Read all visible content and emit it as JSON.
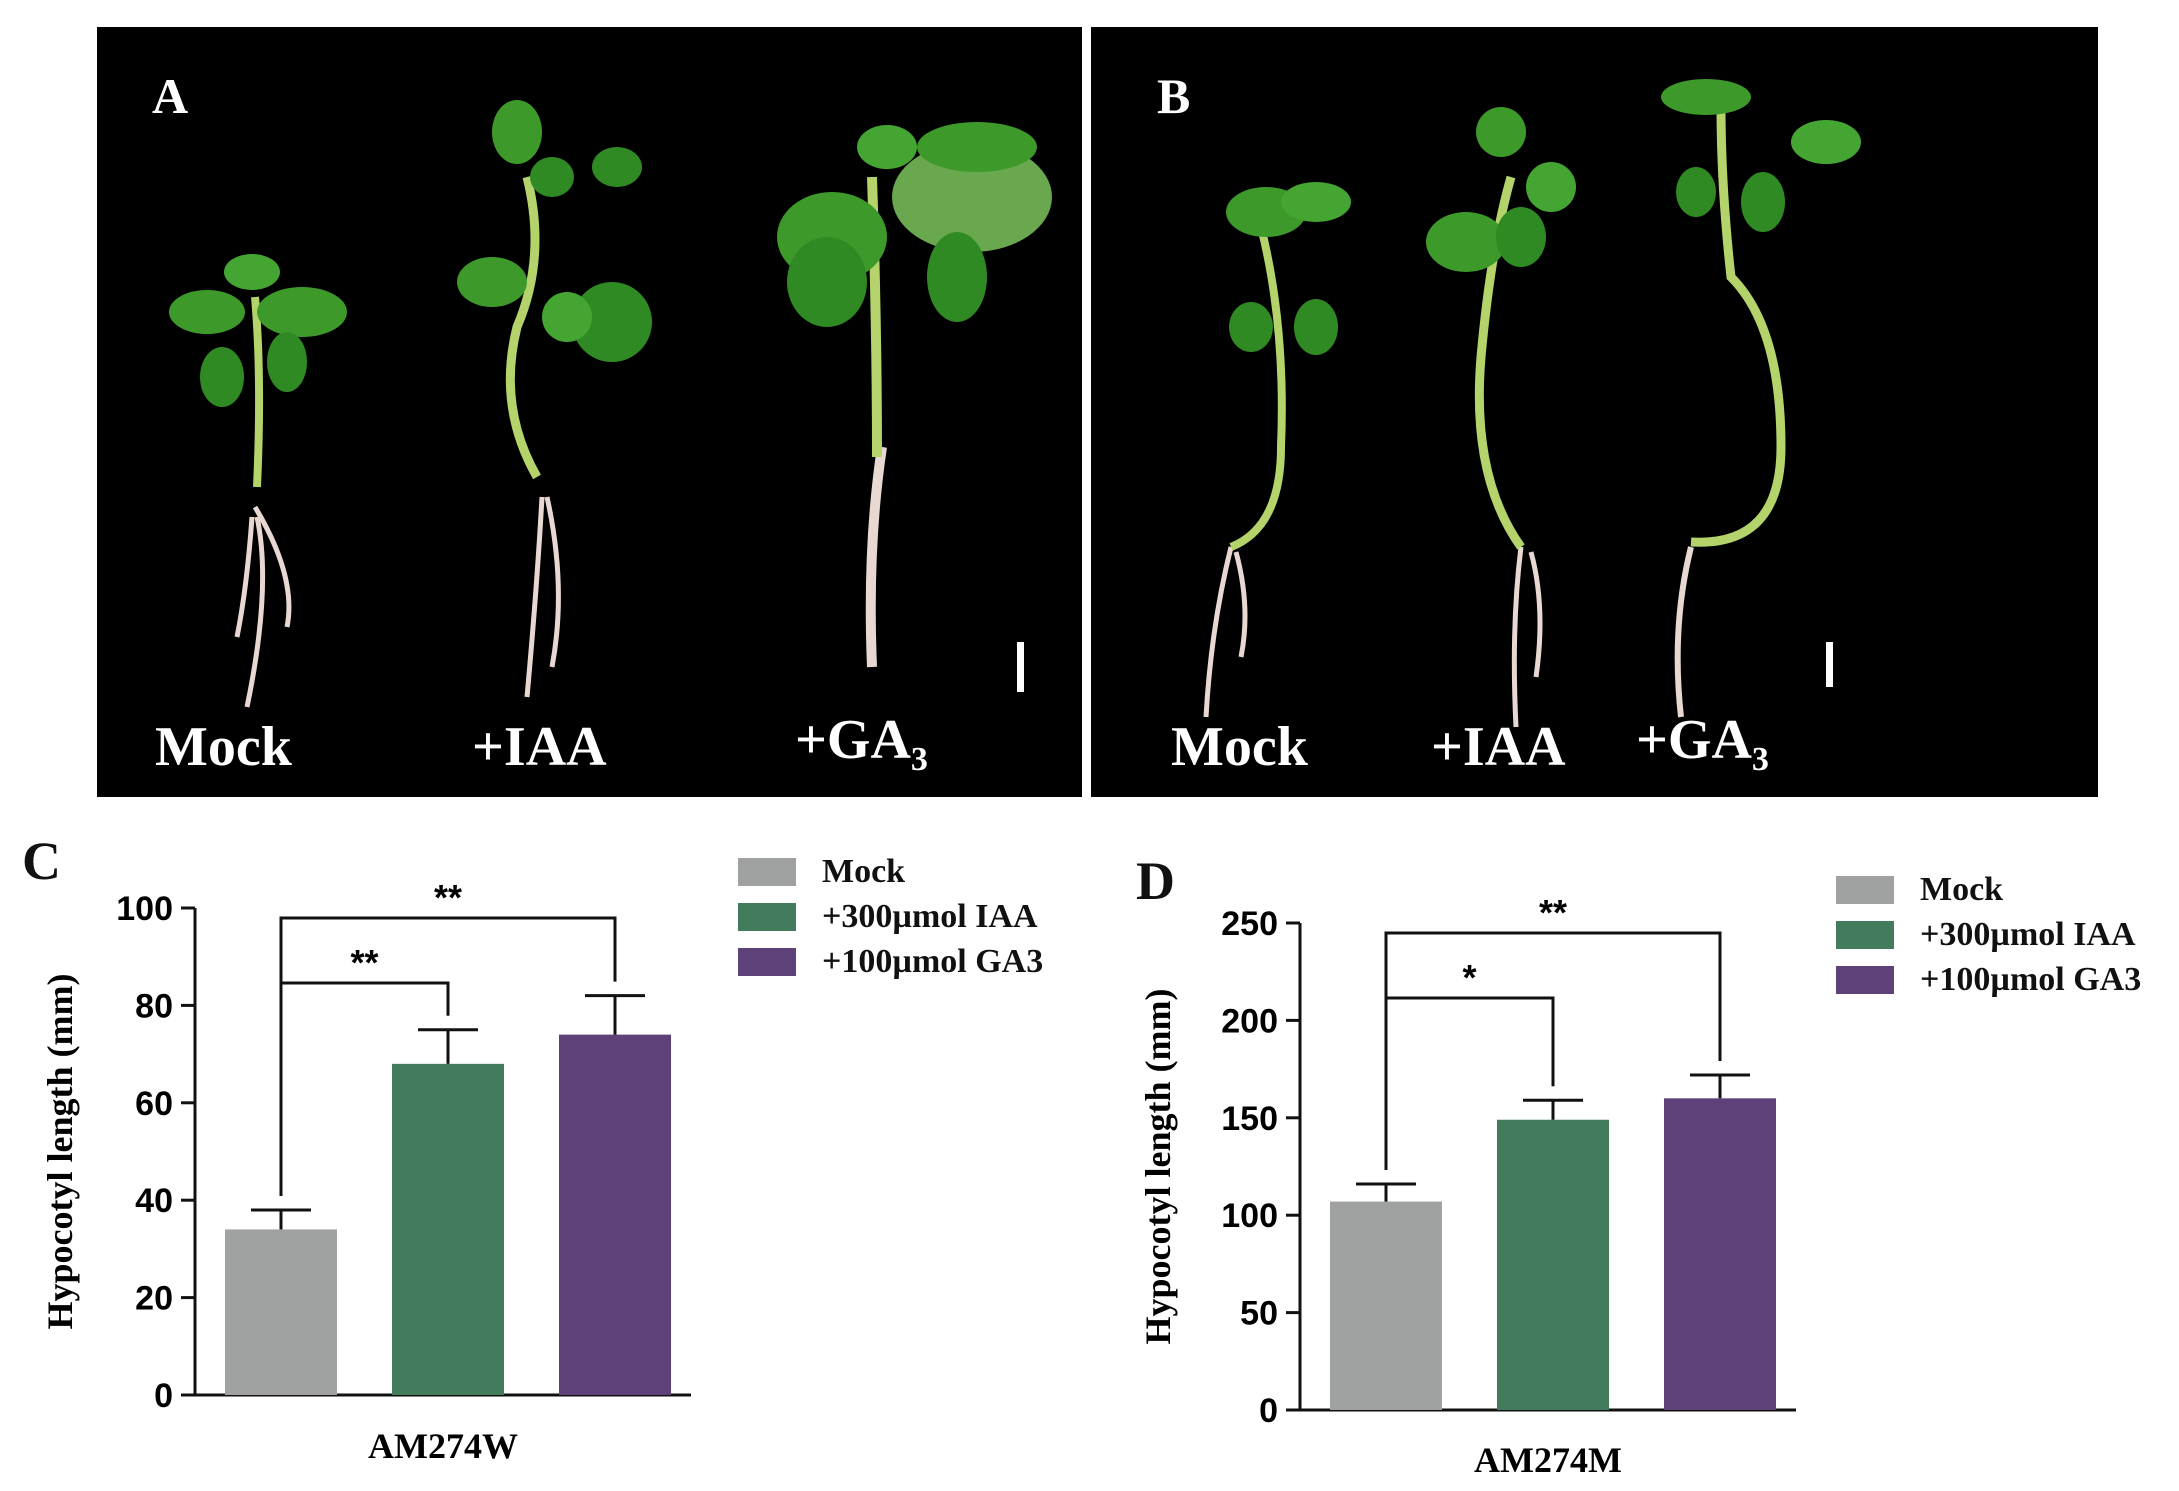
{
  "photo_panels": [
    {
      "letter": "A",
      "labels": [
        "Mock",
        "+IAA",
        "+GA"
      ],
      "subscript": "3"
    },
    {
      "letter": "B",
      "labels": [
        "Mock",
        "+IAA",
        "+GA"
      ],
      "subscript": "3"
    }
  ],
  "colors": {
    "mock": "#a0a2a1",
    "iaa": "#437c5c",
    "ga3": "#5e4178",
    "leaf": "#3d9a2a",
    "stem": "#b4d36a",
    "root": "#e7d9d2"
  },
  "chart_data": [
    {
      "type": "bar",
      "panel": "C",
      "categories": [
        "Mock",
        "+300µmol IAA",
        "+100µmol GA3"
      ],
      "values": [
        34,
        68,
        74
      ],
      "errors": [
        4,
        7,
        8
      ],
      "xlabel": "AM274W",
      "ylabel": "Hypocotyl length (mm)",
      "ylim": [
        0,
        100
      ],
      "yticks": [
        "0",
        "20",
        "40",
        "60",
        "80",
        "100"
      ],
      "significance": [
        {
          "from": 0,
          "to": 1,
          "label": "**"
        },
        {
          "from": 0,
          "to": 2,
          "label": "**"
        }
      ],
      "legend": [
        "Mock",
        "+300µmol IAA",
        "+100µmol GA3"
      ],
      "legend_placement": "top-right"
    },
    {
      "type": "bar",
      "panel": "D",
      "categories": [
        "Mock",
        "+300µmol IAA",
        "+100µmol GA3"
      ],
      "values": [
        107,
        149,
        160
      ],
      "errors": [
        9,
        10,
        12
      ],
      "xlabel": "AM274M",
      "ylabel": "Hypocotyl length (mm)",
      "ylim": [
        0,
        250
      ],
      "yticks": [
        "0",
        "50",
        "100",
        "150",
        "200",
        "250"
      ],
      "significance": [
        {
          "from": 0,
          "to": 1,
          "label": "*"
        },
        {
          "from": 0,
          "to": 2,
          "label": "**"
        }
      ],
      "legend": [
        "Mock",
        "+300µmol IAA",
        "+100µmol GA3"
      ],
      "legend_placement": "top-right"
    }
  ]
}
